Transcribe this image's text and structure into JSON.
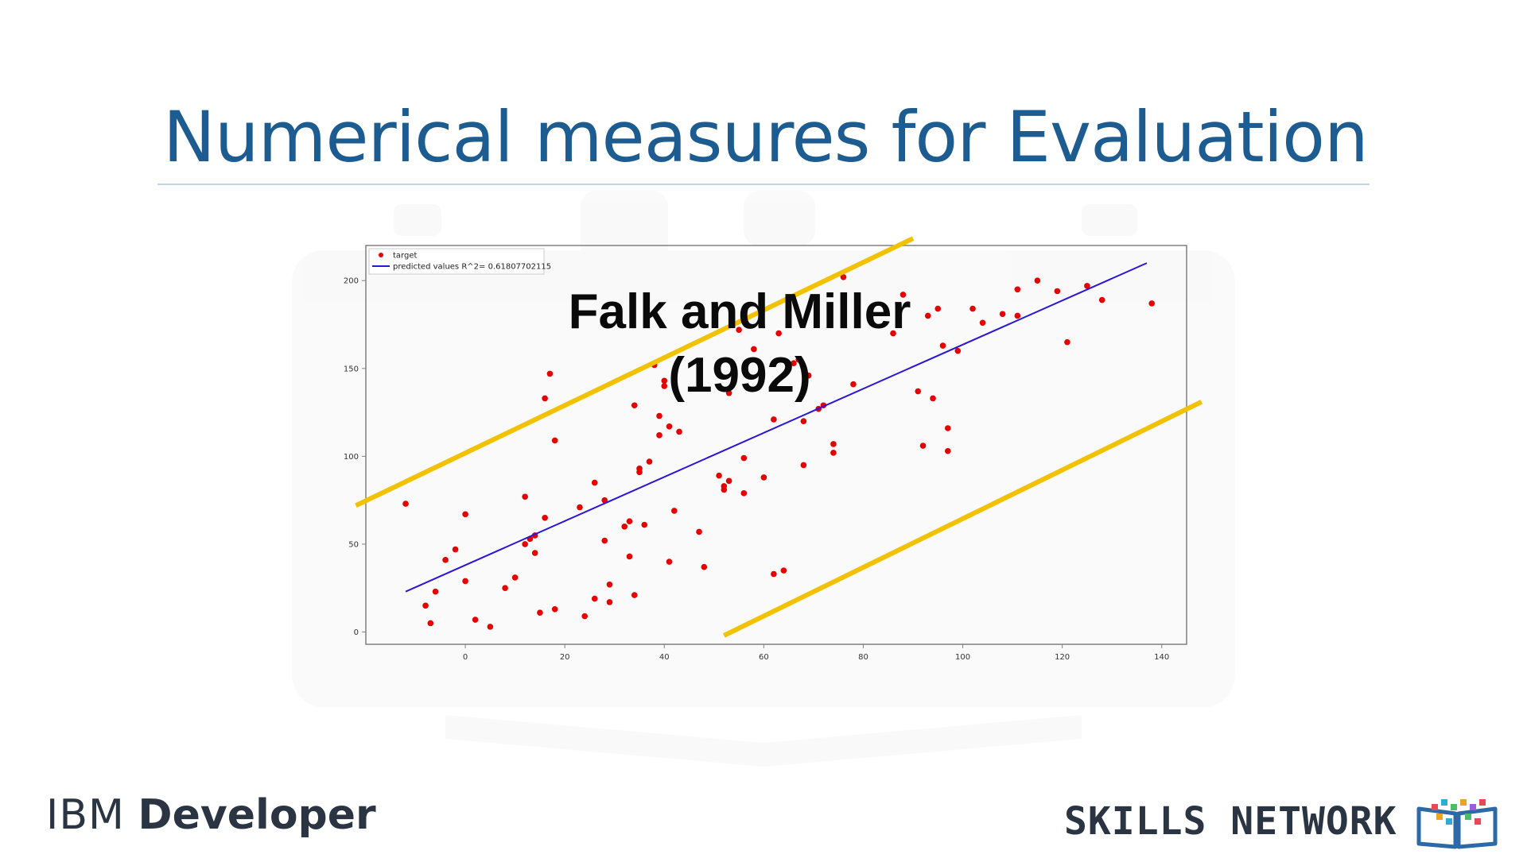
{
  "slide": {
    "title": "Numerical measures for Evaluation"
  },
  "overlay": {
    "line1": "Falk and Miller",
    "line2": "(1992)"
  },
  "footer": {
    "left_brand_1": "IBM",
    "left_brand_2": "Developer",
    "right_brand": "SKILLS NETWORK"
  },
  "colors": {
    "title": "#1d5c91",
    "target_points": "#e60000",
    "predicted_line": "#2a16d8",
    "annotation_lines": "#f2c200",
    "axes": "#808080"
  },
  "icons": {
    "logo": "skills-network-book-icon"
  },
  "chart_data": {
    "type": "scatter",
    "xlim": [
      -20,
      145
    ],
    "ylim": [
      -7,
      220
    ],
    "x_ticks": [
      0,
      20,
      40,
      60,
      80,
      100,
      120,
      140
    ],
    "y_ticks": [
      0,
      50,
      100,
      150,
      200
    ],
    "legend": {
      "placement": "top-left",
      "entries": [
        {
          "label": "target",
          "marker": "dot"
        },
        {
          "label": "predicted values R^2= 0.61807702115",
          "marker": "line"
        }
      ]
    },
    "series": [
      {
        "name": "target",
        "points": [
          [
            -12,
            73
          ],
          [
            -8,
            15
          ],
          [
            -7,
            5
          ],
          [
            -6,
            23
          ],
          [
            -4,
            41
          ],
          [
            -2,
            47
          ],
          [
            0,
            29
          ],
          [
            0,
            67
          ],
          [
            2,
            7
          ],
          [
            5,
            3
          ],
          [
            8,
            25
          ],
          [
            10,
            31
          ],
          [
            12,
            77
          ],
          [
            12,
            50
          ],
          [
            13,
            53
          ],
          [
            14,
            45
          ],
          [
            14,
            55
          ],
          [
            15,
            11
          ],
          [
            16,
            65
          ],
          [
            16,
            133
          ],
          [
            17,
            147
          ],
          [
            18,
            13
          ],
          [
            18,
            109
          ],
          [
            23,
            71
          ],
          [
            24,
            9
          ],
          [
            26,
            19
          ],
          [
            26,
            85
          ],
          [
            28,
            75
          ],
          [
            28,
            52
          ],
          [
            29,
            27
          ],
          [
            29,
            17
          ],
          [
            32,
            60
          ],
          [
            33,
            63
          ],
          [
            33,
            43
          ],
          [
            34,
            129
          ],
          [
            34,
            21
          ],
          [
            35,
            91
          ],
          [
            35,
            93
          ],
          [
            36,
            61
          ],
          [
            37,
            97
          ],
          [
            38,
            152
          ],
          [
            39,
            112
          ],
          [
            39,
            123
          ],
          [
            40,
            140
          ],
          [
            40,
            143
          ],
          [
            41,
            117
          ],
          [
            41,
            40
          ],
          [
            42,
            69
          ],
          [
            43,
            114
          ],
          [
            47,
            57
          ],
          [
            48,
            37
          ],
          [
            51,
            89
          ],
          [
            52,
            81
          ],
          [
            52,
            83
          ],
          [
            53,
            86
          ],
          [
            53,
            136
          ],
          [
            55,
            172
          ],
          [
            56,
            79
          ],
          [
            56,
            99
          ],
          [
            58,
            161
          ],
          [
            60,
            88
          ],
          [
            62,
            33
          ],
          [
            62,
            121
          ],
          [
            63,
            170
          ],
          [
            64,
            35
          ],
          [
            66,
            153
          ],
          [
            67,
            155
          ],
          [
            68,
            120
          ],
          [
            68,
            95
          ],
          [
            69,
            146
          ],
          [
            71,
            127
          ],
          [
            72,
            129
          ],
          [
            74,
            102
          ],
          [
            74,
            107
          ],
          [
            76,
            202
          ],
          [
            78,
            141
          ],
          [
            86,
            170
          ],
          [
            88,
            192
          ],
          [
            91,
            137
          ],
          [
            92,
            106
          ],
          [
            93,
            180
          ],
          [
            94,
            133
          ],
          [
            95,
            184
          ],
          [
            96,
            163
          ],
          [
            97,
            103
          ],
          [
            97,
            116
          ],
          [
            99,
            160
          ],
          [
            102,
            184
          ],
          [
            104,
            176
          ],
          [
            108,
            181
          ],
          [
            111,
            180
          ],
          [
            111,
            195
          ],
          [
            115,
            200
          ],
          [
            119,
            194
          ],
          [
            121,
            165
          ],
          [
            125,
            197
          ],
          [
            128,
            189
          ],
          [
            138,
            187
          ]
        ]
      },
      {
        "name": "predicted values R^2= 0.61807702115",
        "line": [
          [
            -12,
            23
          ],
          [
            137,
            210
          ]
        ]
      }
    ],
    "annotations": [
      {
        "type": "line",
        "from": [
          -22,
          72
        ],
        "to": [
          90,
          224
        ]
      },
      {
        "type": "line",
        "from": [
          52,
          -2
        ],
        "to": [
          148,
          131
        ]
      }
    ]
  }
}
